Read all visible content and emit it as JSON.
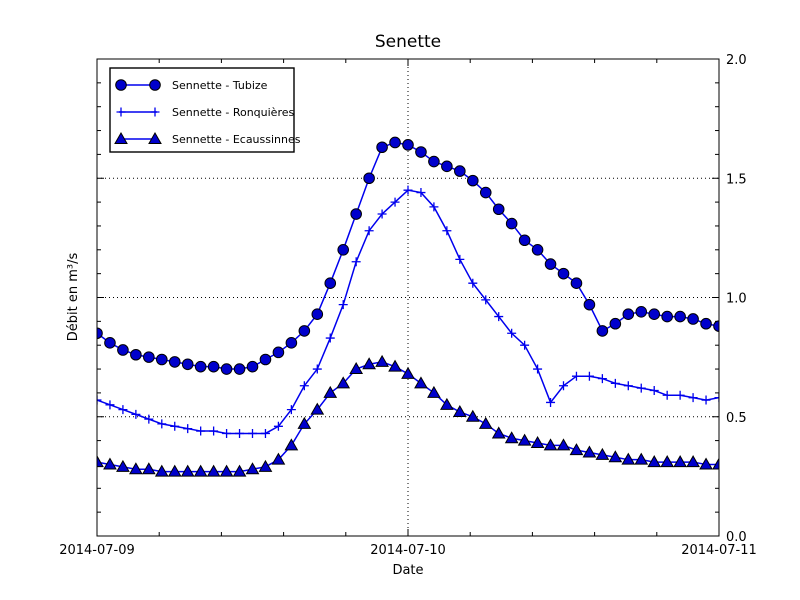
{
  "figure": {
    "title": "Senette",
    "xlabel": "Date",
    "ylabel": "Débit en m³/s"
  },
  "axes": {
    "x_tick_labels": [
      "2014-07-09",
      "2014-07-10",
      "2014-07-11"
    ],
    "y_tick_labels": [
      "0.0",
      "0.5",
      "1.0",
      "1.5",
      "2.0"
    ]
  },
  "legend": {
    "position": "upper left",
    "items": [
      "Sennette - Tubize",
      "Sennette - Ronquières",
      "Sennette - Ecaussinnes"
    ]
  },
  "chart_data": {
    "type": "line",
    "title": "Senette",
    "xlabel": "Date",
    "ylabel": "Débit en m³/s",
    "x_unit": "hours since 2014-07-09 00:00",
    "x": [
      0,
      1,
      2,
      3,
      4,
      5,
      6,
      7,
      8,
      9,
      10,
      11,
      12,
      13,
      14,
      15,
      16,
      17,
      18,
      19,
      20,
      21,
      22,
      23,
      24,
      25,
      26,
      27,
      28,
      29,
      30,
      31,
      32,
      33,
      34,
      35,
      36,
      37,
      38,
      39,
      40,
      41,
      42,
      43,
      44,
      45,
      46,
      47,
      48
    ],
    "x_major_ticks_hours": [
      0,
      24,
      48
    ],
    "x_minor_tick_step_hours": 4.8,
    "y_major_ticks": [
      0.0,
      0.5,
      1.0,
      1.5,
      2.0
    ],
    "y_minor_tick_step": 0.1,
    "ylim": [
      0.0,
      2.0
    ],
    "xlim": [
      "2014-07-09",
      "2014-07-11"
    ],
    "grid": {
      "horizontal_at": [
        0.5,
        1.0,
        1.5
      ],
      "vertical_at_hours": [
        24
      ],
      "style": "dotted"
    },
    "legend_position": "upper left",
    "colors": {
      "line": "#0000ee",
      "marker_fill": "#0000cc",
      "marker_edge": "#000000",
      "frame": "#000000",
      "grid": "#000000"
    },
    "series": [
      {
        "name": "Sennette - Tubize",
        "marker": "circle",
        "values": [
          0.85,
          0.81,
          0.78,
          0.76,
          0.75,
          0.74,
          0.73,
          0.72,
          0.71,
          0.71,
          0.7,
          0.7,
          0.71,
          0.74,
          0.77,
          0.81,
          0.86,
          0.93,
          1.06,
          1.2,
          1.35,
          1.5,
          1.63,
          1.65,
          1.64,
          1.61,
          1.57,
          1.55,
          1.53,
          1.49,
          1.44,
          1.37,
          1.31,
          1.24,
          1.2,
          1.14,
          1.1,
          1.06,
          0.97,
          0.86,
          0.89,
          0.93,
          0.94,
          0.93,
          0.92,
          0.92,
          0.91,
          0.89,
          0.88
        ]
      },
      {
        "name": "Sennette - Ronquières",
        "marker": "plus",
        "values": [
          0.57,
          0.55,
          0.53,
          0.51,
          0.49,
          0.47,
          0.46,
          0.45,
          0.44,
          0.44,
          0.43,
          0.43,
          0.43,
          0.43,
          0.46,
          0.53,
          0.63,
          0.7,
          0.83,
          0.97,
          1.15,
          1.28,
          1.35,
          1.4,
          1.45,
          1.44,
          1.38,
          1.28,
          1.16,
          1.06,
          0.99,
          0.92,
          0.85,
          0.8,
          0.7,
          0.56,
          0.63,
          0.67,
          0.67,
          0.66,
          0.64,
          0.63,
          0.62,
          0.61,
          0.59,
          0.59,
          0.58,
          0.57,
          0.58
        ]
      },
      {
        "name": "Sennette - Ecaussinnes",
        "marker": "triangle",
        "values": [
          0.31,
          0.3,
          0.29,
          0.28,
          0.28,
          0.27,
          0.27,
          0.27,
          0.27,
          0.27,
          0.27,
          0.27,
          0.28,
          0.29,
          0.32,
          0.38,
          0.47,
          0.53,
          0.6,
          0.64,
          0.7,
          0.72,
          0.73,
          0.71,
          0.68,
          0.64,
          0.6,
          0.55,
          0.52,
          0.5,
          0.47,
          0.43,
          0.41,
          0.4,
          0.39,
          0.38,
          0.38,
          0.36,
          0.35,
          0.34,
          0.33,
          0.32,
          0.32,
          0.31,
          0.31,
          0.31,
          0.31,
          0.3,
          0.3
        ]
      }
    ]
  }
}
